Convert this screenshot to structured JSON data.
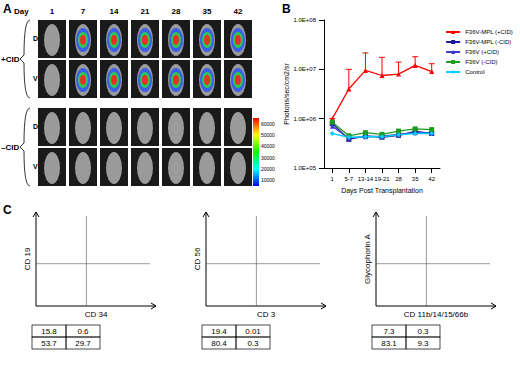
{
  "panel_labels": [
    "A",
    "B",
    "C"
  ],
  "panel_a": {
    "day_label": "Day",
    "days": [
      "1",
      "7",
      "14",
      "21",
      "28",
      "35",
      "42"
    ],
    "groups": [
      {
        "label": "+CID",
        "views": [
          "D",
          "V"
        ]
      },
      {
        "label": "–CID",
        "views": [
          "D",
          "V"
        ]
      }
    ],
    "colorbar_range": [
      5000,
      65000
    ],
    "colorbar_ticks": [
      60000,
      50000,
      40000,
      30000,
      20000,
      10000
    ]
  },
  "chart_data": {
    "type": "line",
    "x_label": "Days Post Transplantation",
    "y_label": "Photons/sec/cm2/sr",
    "categories": [
      "1",
      "5-7",
      "13-14",
      "19-21",
      "28",
      "35",
      "42"
    ],
    "log": "y",
    "ylim": [
      100000,
      100000000
    ],
    "yticks": [
      {
        "value": 100000,
        "label": "1.0E+05"
      },
      {
        "value": 1000000,
        "label": "1.0E+06"
      },
      {
        "value": 10000000,
        "label": "1.0E+07"
      },
      {
        "value": 100000000,
        "label": "1.0E+08"
      }
    ],
    "grid": false,
    "legend": "right",
    "series": [
      {
        "name": "F36V-MPL (+CID)",
        "color": "#ff0000",
        "marker": "triangle",
        "values": [
          1000000,
          4000000,
          9500000,
          7500000,
          8000000,
          12000000,
          9000000
        ],
        "error": [
          0,
          6000000,
          12000000,
          10000000,
          6000000,
          6000000,
          4000000
        ]
      },
      {
        "name": "F36V-MPL (-CID)",
        "color": "#1a1a9c",
        "marker": "square",
        "values": [
          800000,
          380000,
          450000,
          420000,
          460000,
          550000,
          500000
        ]
      },
      {
        "name": "F36V (+CID)",
        "color": "#3a3ad0",
        "marker": "triangle",
        "values": [
          700000,
          400000,
          430000,
          440000,
          480000,
          520000,
          520000
        ]
      },
      {
        "name": "F36V (-CID)",
        "color": "#1e9a1e",
        "marker": "square",
        "values": [
          850000,
          450000,
          520000,
          480000,
          560000,
          620000,
          600000
        ]
      },
      {
        "name": "Control",
        "color": "#00ccff",
        "marker": "diamond",
        "values": [
          500000,
          420000,
          430000,
          430000,
          470000,
          500000,
          500000
        ]
      }
    ]
  },
  "panel_c": {
    "plots": [
      {
        "x_label": "CD 34",
        "y_label": "CD 19",
        "quadrants": [
          [
            15.8,
            0.6
          ],
          [
            53.7,
            29.7
          ]
        ]
      },
      {
        "x_label": "CD 3",
        "y_label": "CD 56",
        "quadrants": [
          [
            19.4,
            0.01
          ],
          [
            80.4,
            0.3
          ]
        ]
      },
      {
        "x_label": "CD 11b/14/15/66b",
        "y_label": "Glycophorin A",
        "quadrants": [
          [
            7.3,
            0.3
          ],
          [
            83.1,
            9.3
          ]
        ]
      }
    ]
  }
}
